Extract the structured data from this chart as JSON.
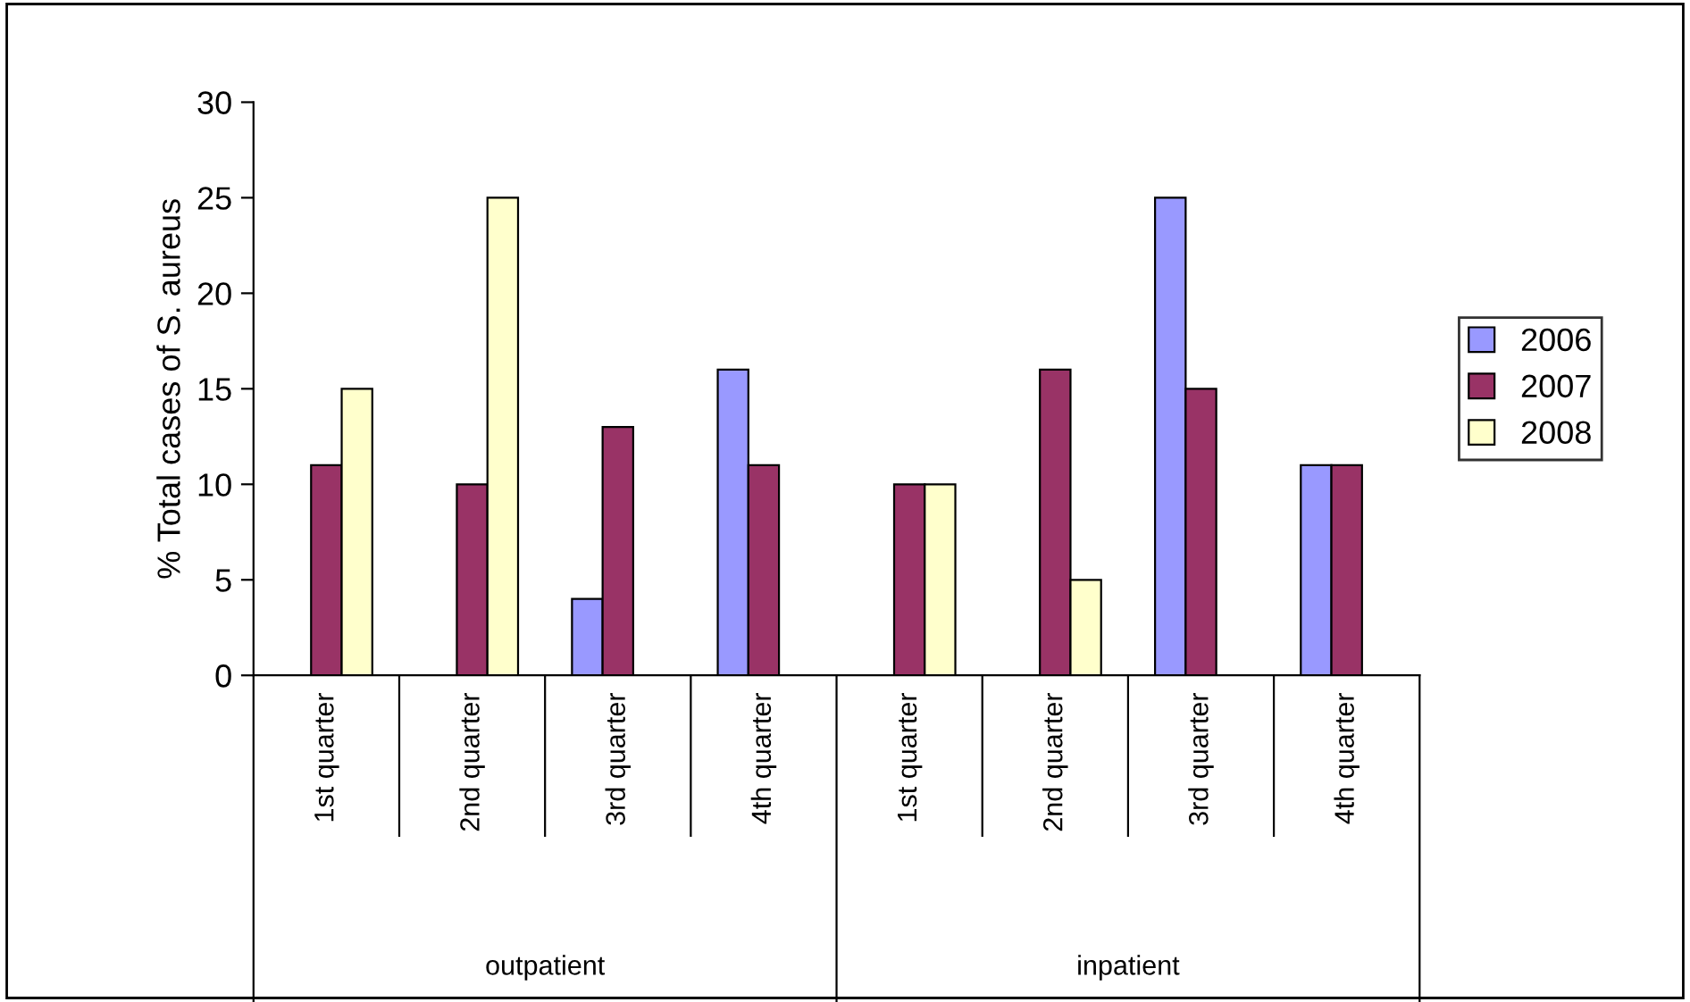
{
  "chart_data": {
    "type": "bar",
    "ylabel": "% Total cases of S. aureus",
    "categories": [
      "1st quarter",
      "2nd quarter",
      "3rd quarter",
      "4th quarter",
      "1st quarter",
      "2nd quarter",
      "3rd quarter",
      "4th quarter"
    ],
    "series": [
      {
        "name": "2006",
        "color": "#9999ff",
        "values": [
          null,
          null,
          4,
          16,
          null,
          null,
          25,
          11
        ]
      },
      {
        "name": "2007",
        "color": "#993366",
        "values": [
          11,
          10,
          13,
          11,
          10,
          16,
          15,
          11
        ]
      },
      {
        "name": "2008",
        "color": "#ffffcc",
        "values": [
          15,
          25,
          null,
          null,
          10,
          5,
          null,
          null
        ]
      }
    ],
    "annotations": [
      "outpatient",
      "inpatient"
    ],
    "ylim": [
      0,
      30
    ],
    "yticks": [
      0,
      5,
      10,
      15,
      20,
      25,
      30
    ],
    "grid": false,
    "legend": "right"
  }
}
